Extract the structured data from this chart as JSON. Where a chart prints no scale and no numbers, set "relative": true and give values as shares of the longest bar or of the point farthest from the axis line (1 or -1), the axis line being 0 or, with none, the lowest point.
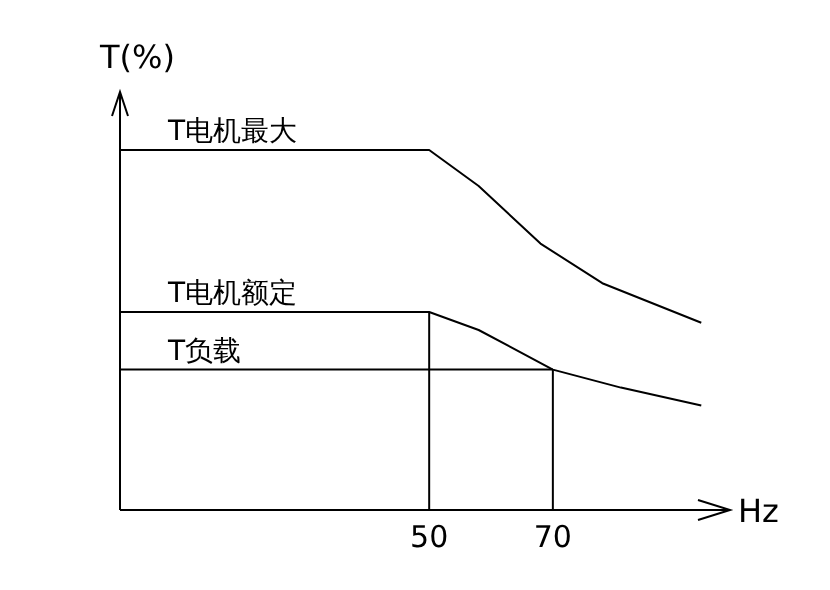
{
  "chart_data": {
    "type": "line",
    "ylabel": "T(%)",
    "xlabel": "Hz",
    "relative": true,
    "xlim": [
      0,
      98
    ],
    "xticks": [
      50,
      70
    ],
    "grid": false,
    "marker": "none",
    "line_style": "solid",
    "series": [
      {
        "name": "T电机最大",
        "color": "#000000",
        "x": [
          0,
          50,
          58,
          68,
          78,
          94
        ],
        "values": [
          1,
          1,
          0.9,
          0.74,
          0.63,
          0.52
        ]
      },
      {
        "name": "T电机额定",
        "color": "#000000",
        "x": [
          0,
          50,
          58,
          70,
          81,
          94
        ],
        "values": [
          0.55,
          0.55,
          0.5,
          0.39,
          0.34,
          0.29
        ]
      },
      {
        "name": "T负载",
        "color": "#000000",
        "x": [
          0,
          70
        ],
        "values": [
          0.39,
          0.39
        ]
      },
      {
        "color": "#000000",
        "x": [
          50,
          50
        ],
        "values": [
          0,
          0.55
        ]
      },
      {
        "color": "#000000",
        "x": [
          70,
          70
        ],
        "values": [
          0,
          0.39
        ]
      }
    ]
  }
}
